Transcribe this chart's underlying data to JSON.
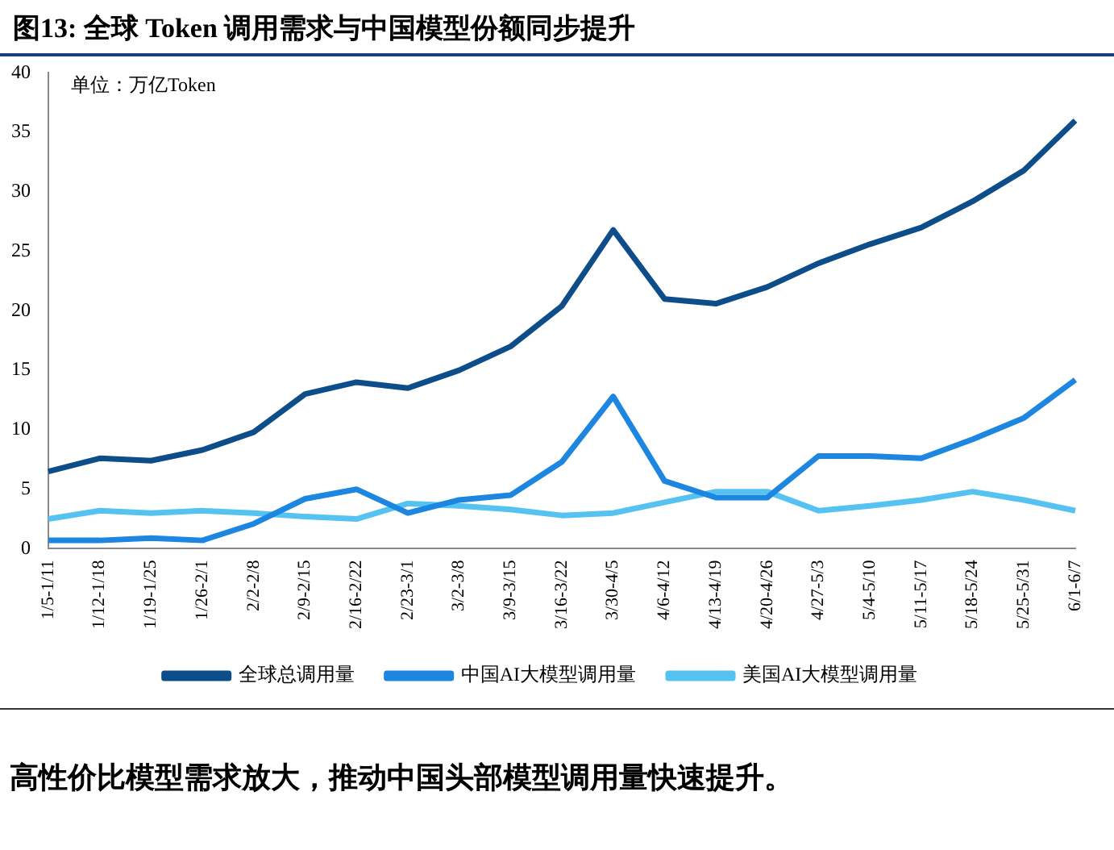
{
  "chart_data": {
    "type": "line",
    "title": "图13:  全球 Token 调用需求与中国模型份额同步提升",
    "categories": [
      "1/5-1/11",
      "1/12-1/18",
      "1/19-1/25",
      "1/26-2/1",
      "2/2-2/8",
      "2/9-2/15",
      "2/16-2/22",
      "2/23-3/1",
      "3/2-3/8",
      "3/9-3/15",
      "3/16-3/22",
      "3/30-4/5",
      "4/6-4/12",
      "4/13-4/19",
      "4/20-4/26",
      "4/27-5/3",
      "5/4-5/10",
      "5/11-5/17",
      "5/18-5/24",
      "5/25-5/31",
      "6/1-6/7"
    ],
    "series": [
      {
        "name": "全球总调用量",
        "color": "#0d4d8a",
        "values": [
          6.5,
          7.6,
          7.4,
          8.3,
          9.8,
          13,
          14,
          13.5,
          15,
          17,
          20.4,
          26.8,
          21,
          20.6,
          22,
          24,
          25.6,
          27,
          29.2,
          31.8,
          36
        ]
      },
      {
        "name": "中国AI大模型调用量",
        "color": "#1c86e0",
        "values": [
          0.7,
          0.7,
          0.9,
          0.7,
          2.1,
          4.2,
          5,
          3,
          4.1,
          4.5,
          7.3,
          12.8,
          5.7,
          4.3,
          4.3,
          7.8,
          7.8,
          7.6,
          9.2,
          11,
          14.2
        ]
      },
      {
        "name": "美国AI大模型调用量",
        "color": "#55c2f2",
        "values": [
          2.5,
          3.2,
          3,
          3.2,
          3,
          2.7,
          2.5,
          3.8,
          3.6,
          3.3,
          2.8,
          3,
          3.9,
          4.8,
          4.8,
          3.2,
          3.6,
          4.1,
          4.8,
          4.1,
          3.2
        ]
      }
    ],
    "ylim": [
      0,
      40
    ],
    "yticks": [
      0,
      5,
      10,
      15,
      20,
      25,
      30,
      35,
      40
    ],
    "grid": false,
    "legend": "bottom",
    "marker": "none",
    "line_style": "solid",
    "annotations": [
      "单位：万亿Token",
      "高性价比模型需求放大，推动中国头部模型调用量快速提升。"
    ]
  }
}
